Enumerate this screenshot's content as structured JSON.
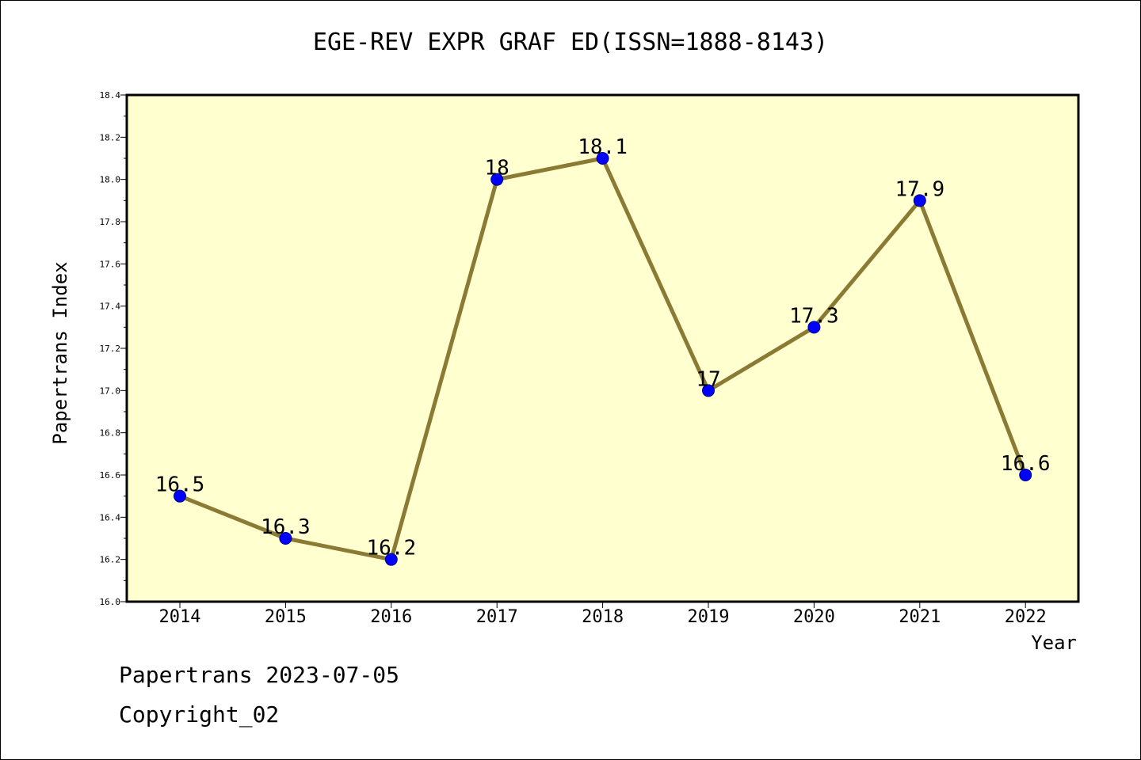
{
  "title": "EGE-REV EXPR GRAF ED(ISSN=1888-8143)",
  "footer": {
    "line1": "Papertrans 2023-07-05",
    "line2": "Copyright_02"
  },
  "colors": {
    "plot_background": "#ffffd0",
    "line": "#8b7a34",
    "marker": "#0000ff"
  },
  "chart_data": {
    "type": "line",
    "xlabel": "Year",
    "ylabel": "Papertrans Index",
    "categories": [
      "2014",
      "2015",
      "2016",
      "2017",
      "2018",
      "2019",
      "2020",
      "2021",
      "2022"
    ],
    "values": [
      16.5,
      16.3,
      16.2,
      18,
      18.1,
      17,
      17.3,
      17.9,
      16.6
    ],
    "data_labels": [
      "16.5",
      "16.3",
      "16.2",
      "18",
      "18.1",
      "17",
      "17.3",
      "17.9",
      "16.6"
    ],
    "ylim": [
      16.0,
      18.4
    ],
    "yticks": [
      "16.0",
      "16.2",
      "16.4",
      "16.6",
      "16.8",
      "17.0",
      "17.2",
      "17.4",
      "17.6",
      "17.8",
      "18.0",
      "18.2",
      "18.4"
    ],
    "grid": false,
    "legend": false
  }
}
